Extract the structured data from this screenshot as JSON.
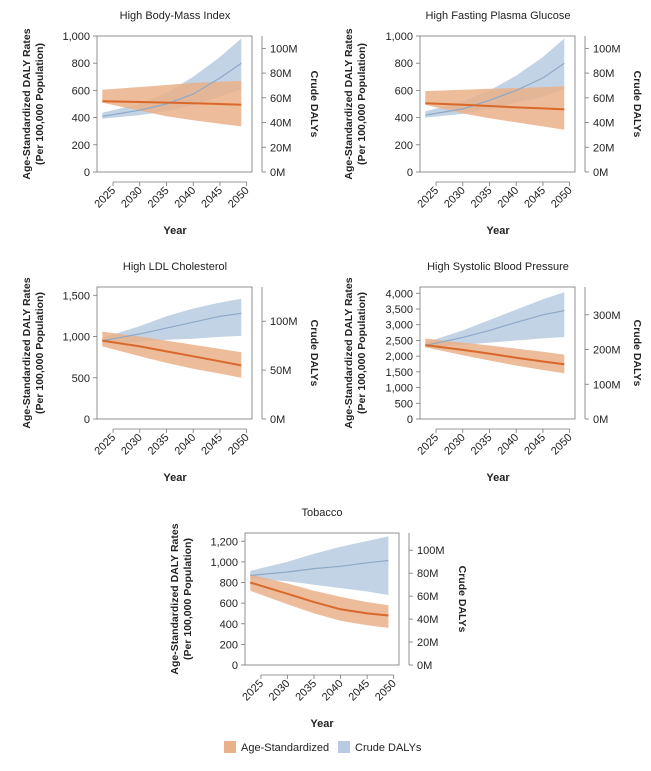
{
  "figure": {
    "colors": {
      "age_line": "#d9692a",
      "age_band": "#eab08a",
      "crude_line": "#8ea9c7",
      "crude_band": "#b9cbe2"
    },
    "legend": [
      {
        "label": "Age-Standardized",
        "color": "#eab08a"
      },
      {
        "label": "Crude DALYs",
        "color": "#b9cbe2"
      }
    ]
  },
  "chart_data": [
    {
      "type": "line",
      "title": "High Body-Mass Index",
      "xlabel": "Year",
      "ylabel": [
        "Age-Standardized DALY Rates",
        "(Per 100,000 Population)"
      ],
      "y2label": "Crude DALYs",
      "x": [
        2023,
        2030,
        2035,
        2040,
        2045,
        2049
      ],
      "xticks": [
        "2025",
        "2030",
        "2035",
        "2040",
        "2045",
        "2050"
      ],
      "ylim": [
        0,
        1000
      ],
      "yticks": [
        "0",
        "200",
        "400",
        "600",
        "800",
        "1,000"
      ],
      "y2lim": [
        0,
        110
      ],
      "y2ticks": [
        "0M",
        "20M",
        "40M",
        "60M",
        "80M",
        "100M"
      ],
      "series": [
        {
          "name": "Age-Standardized",
          "values": [
            520,
            515,
            510,
            505,
            500,
            495
          ],
          "lower": [
            510,
            450,
            410,
            380,
            355,
            335
          ],
          "upper": [
            605,
            625,
            640,
            655,
            665,
            670
          ]
        },
        {
          "name": "Crude DALYs",
          "values": [
            45,
            50,
            55,
            63,
            76,
            88
          ],
          "lower": [
            43,
            46,
            49,
            54,
            61,
            67
          ],
          "upper": [
            48,
            55,
            64,
            77,
            93,
            108
          ]
        }
      ]
    },
    {
      "type": "line",
      "title": "High Fasting Plasma Glucose",
      "xlabel": "Year",
      "ylabel": [
        "Age-Standardized DALY Rates",
        "(Per 100,000 Population)"
      ],
      "y2label": "Crude DALYs",
      "x": [
        2023,
        2030,
        2035,
        2040,
        2045,
        2049
      ],
      "xticks": [
        "2025",
        "2030",
        "2035",
        "2040",
        "2045",
        "2050"
      ],
      "ylim": [
        0,
        1000
      ],
      "yticks": [
        "0",
        "200",
        "400",
        "600",
        "800",
        "1,000"
      ],
      "y2lim": [
        0,
        110
      ],
      "y2ticks": [
        "0M",
        "20M",
        "40M",
        "60M",
        "80M",
        "100M"
      ],
      "series": [
        {
          "name": "Age-Standardized",
          "values": [
            505,
            495,
            485,
            475,
            468,
            460
          ],
          "lower": [
            495,
            430,
            395,
            365,
            335,
            310
          ],
          "upper": [
            595,
            605,
            612,
            618,
            624,
            630
          ]
        },
        {
          "name": "Crude DALYs",
          "values": [
            46,
            51,
            58,
            66,
            76,
            88
          ],
          "lower": [
            44,
            47,
            51,
            56,
            61,
            67
          ],
          "upper": [
            49,
            57,
            66,
            78,
            93,
            108
          ]
        }
      ]
    },
    {
      "type": "line",
      "title": "High LDL Cholesterol",
      "xlabel": "Year",
      "ylabel": [
        "Age-Standardized DALY Rates",
        "(Per 100,000 Population)"
      ],
      "y2label": "Crude DALYs",
      "x": [
        2023,
        2030,
        2035,
        2040,
        2045,
        2049
      ],
      "xticks": [
        "2025",
        "2030",
        "2035",
        "2040",
        "2045",
        "2050"
      ],
      "ylim": [
        0,
        1600
      ],
      "yticks": [
        "0",
        "500",
        "1,000",
        "1,500"
      ],
      "y2lim": [
        0,
        135
      ],
      "y2ticks": [
        "0M",
        "50M",
        "100M"
      ],
      "series": [
        {
          "name": "Age-Standardized",
          "values": [
            950,
            880,
            820,
            760,
            700,
            650
          ],
          "lower": [
            880,
            760,
            680,
            610,
            550,
            500
          ],
          "upper": [
            1060,
            1000,
            950,
            900,
            850,
            810
          ]
        },
        {
          "name": "Crude DALYs",
          "values": [
            80,
            87,
            93,
            99,
            105,
            108
          ],
          "lower": [
            77,
            79,
            81,
            82,
            84,
            85
          ],
          "upper": [
            83,
            95,
            105,
            113,
            119,
            123
          ]
        }
      ]
    },
    {
      "type": "line",
      "title": "High Systolic Blood Pressure",
      "xlabel": "Year",
      "ylabel": [
        "Age-Standardized DALY Rates",
        "(Per 100,000 Population)"
      ],
      "y2label": "Crude DALYs",
      "x": [
        2023,
        2030,
        2035,
        2040,
        2045,
        2049
      ],
      "xticks": [
        "2025",
        "2030",
        "2035",
        "2040",
        "2045",
        "2050"
      ],
      "ylim": [
        0,
        4200
      ],
      "yticks": [
        "0",
        "500",
        "1,000",
        "1,500",
        "2,000",
        "2,500",
        "3,000",
        "3,500",
        "4,000"
      ],
      "y2lim": [
        0,
        380
      ],
      "y2ticks": [
        "0M",
        "100M",
        "200M",
        "300M"
      ],
      "series": [
        {
          "name": "Age-Standardized",
          "values": [
            2350,
            2200,
            2080,
            1950,
            1830,
            1740
          ],
          "lower": [
            2280,
            2030,
            1860,
            1700,
            1560,
            1450
          ],
          "upper": [
            2560,
            2430,
            2340,
            2240,
            2140,
            2050
          ]
        },
        {
          "name": "Crude DALYs",
          "values": [
            212,
            235,
            255,
            278,
            300,
            312
          ],
          "lower": [
            205,
            213,
            220,
            226,
            232,
            236
          ],
          "upper": [
            220,
            255,
            285,
            315,
            345,
            365
          ]
        }
      ]
    },
    {
      "type": "line",
      "title": "Tobacco",
      "xlabel": "Year",
      "ylabel": [
        "Age-Standardized DALY Rates",
        "(Per 100,000 Population)"
      ],
      "y2label": "Crude DALYs",
      "x": [
        2023,
        2030,
        2035,
        2040,
        2045,
        2049
      ],
      "xticks": [
        "2025",
        "2030",
        "2035",
        "2040",
        "2045",
        "2050"
      ],
      "ylim": [
        0,
        1280
      ],
      "yticks": [
        "0",
        "200",
        "400",
        "600",
        "800",
        "1,000",
        "1,200"
      ],
      "y2lim": [
        0,
        115
      ],
      "y2ticks": [
        "0M",
        "20M",
        "40M",
        "60M",
        "80M",
        "100M"
      ],
      "series": [
        {
          "name": "Age-Standardized",
          "values": [
            800,
            690,
            610,
            540,
            500,
            480
          ],
          "lower": [
            720,
            590,
            500,
            430,
            385,
            360
          ],
          "upper": [
            880,
            790,
            720,
            660,
            610,
            580
          ]
        },
        {
          "name": "Crude DALYs",
          "values": [
            78,
            81,
            84,
            86,
            89,
            91
          ],
          "lower": [
            75,
            73,
            70,
            67,
            64,
            61
          ],
          "upper": [
            82,
            90,
            97,
            103,
            108,
            112
          ]
        }
      ]
    }
  ]
}
